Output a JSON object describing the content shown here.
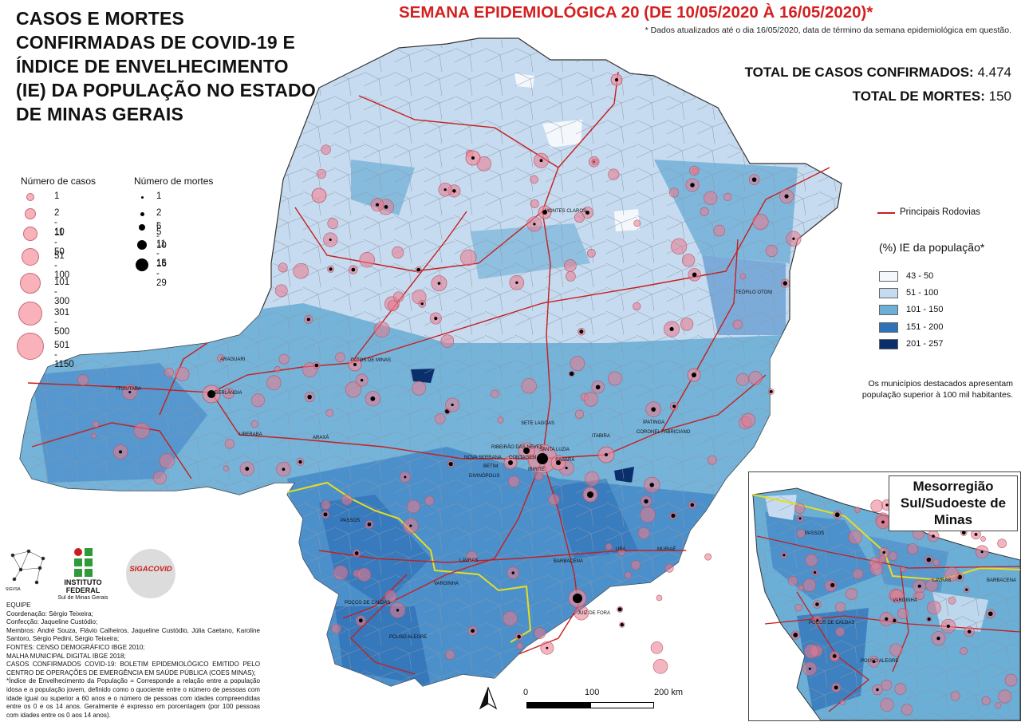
{
  "title": "CASOS E MORTES CONFIRMADAS DE COVID-19 E ÍNDICE DE ENVELHECIMENTO (IE) DA POPULAÇÃO NO ESTADO DE MINAS GERAIS",
  "epi_week": "SEMANA EPIDEMIOLÓGICA 20 (DE 10/05/2020 À 16/05/2020)*",
  "update_note": "* Dados atualizados até o dia 16/05/2020, data de término da semana epidemiológica em questão.",
  "totals": {
    "cases_label": "TOTAL DE CASOS CONFIRMADOS:",
    "cases_value": "4.474",
    "deaths_label": "TOTAL DE MORTES:",
    "deaths_value": "150"
  },
  "legend_cases": {
    "title": "Número de casos",
    "items": [
      "1",
      "2 - 10",
      "11 - 50",
      "51 - 100",
      "101 - 300",
      "301 - 500",
      "501 - 1150"
    ]
  },
  "legend_deaths": {
    "title": "Número de mortes",
    "items": [
      "1",
      "2 - 5",
      "6 - 10",
      "11 - 15",
      "16 - 29"
    ]
  },
  "roads_label": "Principais Rodovias",
  "ie_legend": {
    "title": "(%) IE da população*",
    "items": [
      {
        "label": "43 - 50",
        "color": "#f4f8fc"
      },
      {
        "label": "51 - 100",
        "color": "#c6dbef"
      },
      {
        "label": "101 - 150",
        "color": "#6baed6"
      },
      {
        "label": "151 - 200",
        "color": "#2f72b8"
      },
      {
        "label": "201 - 257",
        "color": "#0a2f6b"
      }
    ]
  },
  "highlight_note": "Os municípios destacados apresentam população superior à 100 mil habitantes.",
  "cities": [
    "MONTES CLAROS",
    "TEÓFILO OTONI",
    "PATOS DE MINAS",
    "ARAGUARI",
    "ITUIUTABA",
    "UBERLÂNDIA",
    "UBERABA",
    "ARAXÁ",
    "SETE LAGOAS",
    "RIBEIRÃO DAS NEVES",
    "SANTA LUZIA",
    "NOVA SERRANA",
    "CONTAGEM",
    "SABARÁ",
    "BETIM",
    "IBIRITÉ",
    "DIVINÓPOLIS",
    "ITABIRA",
    "IPATINGA",
    "CORONEL FABRICIANO",
    "PASSOS",
    "LAVRAS",
    "BARBACENA",
    "UBÁ",
    "MURIAÉ",
    "VARGINHA",
    "POÇOS DE CALDAS",
    "JUIZ DE FORA",
    "POUSO ALEGRE"
  ],
  "inset": {
    "title": "Mesorregião Sul/Sudoeste de Minas",
    "cities": [
      "PASSOS",
      "LAVRAS",
      "BARBACENA",
      "VARGINHA",
      "POÇOS DE CALDAS",
      "POUSO ALEGRE"
    ]
  },
  "scale": {
    "ticks": [
      "0",
      "100",
      "200 km"
    ]
  },
  "logos": {
    "sigvsa": "SIGVSA",
    "ifsul_name": "INSTITUTO FEDERAL",
    "ifsul_sub": "Sul de Minas Gerais",
    "sigacovid": "SIGACOVID"
  },
  "credits": [
    "EQUIPE",
    "Coordenação: Sérgio Teixeira;",
    "Confecção: Jaqueline Custódio;",
    "Membros: André Souza, Flávio Calheiros, Jaqueline Custódio, Júlia Caetano, Karoline Santoro, Sérgio Pedini, Sérgio Teixeira;",
    "FONTES: CENSO DEMOGRÁFICO IBGE 2010;",
    "MALHA MUNICIPAL DIGITAL IBGE 2018;",
    "CASOS CONFIRMADOS COVID-19: BOLETIM EPIDEMIOLÓGICO EMITIDO PELO CENTRO DE OPERAÇÕES DE EMERGÊNCIA EM SAÚDE PÚBLICA (COES MINAS);",
    "*Índice de Envelhecimento da População = Corresponde a relação entre a população idosa e a população jovem, definido como o quociente entre o número de pessoas com idade igual ou superior a 60 anos e o número de pessoas com idades compreendidas entre os 0 e os 14 anos. Geralmente é expresso em porcentagem (por 100 pessoas com idades entre os 0 aos 14 anos)."
  ]
}
